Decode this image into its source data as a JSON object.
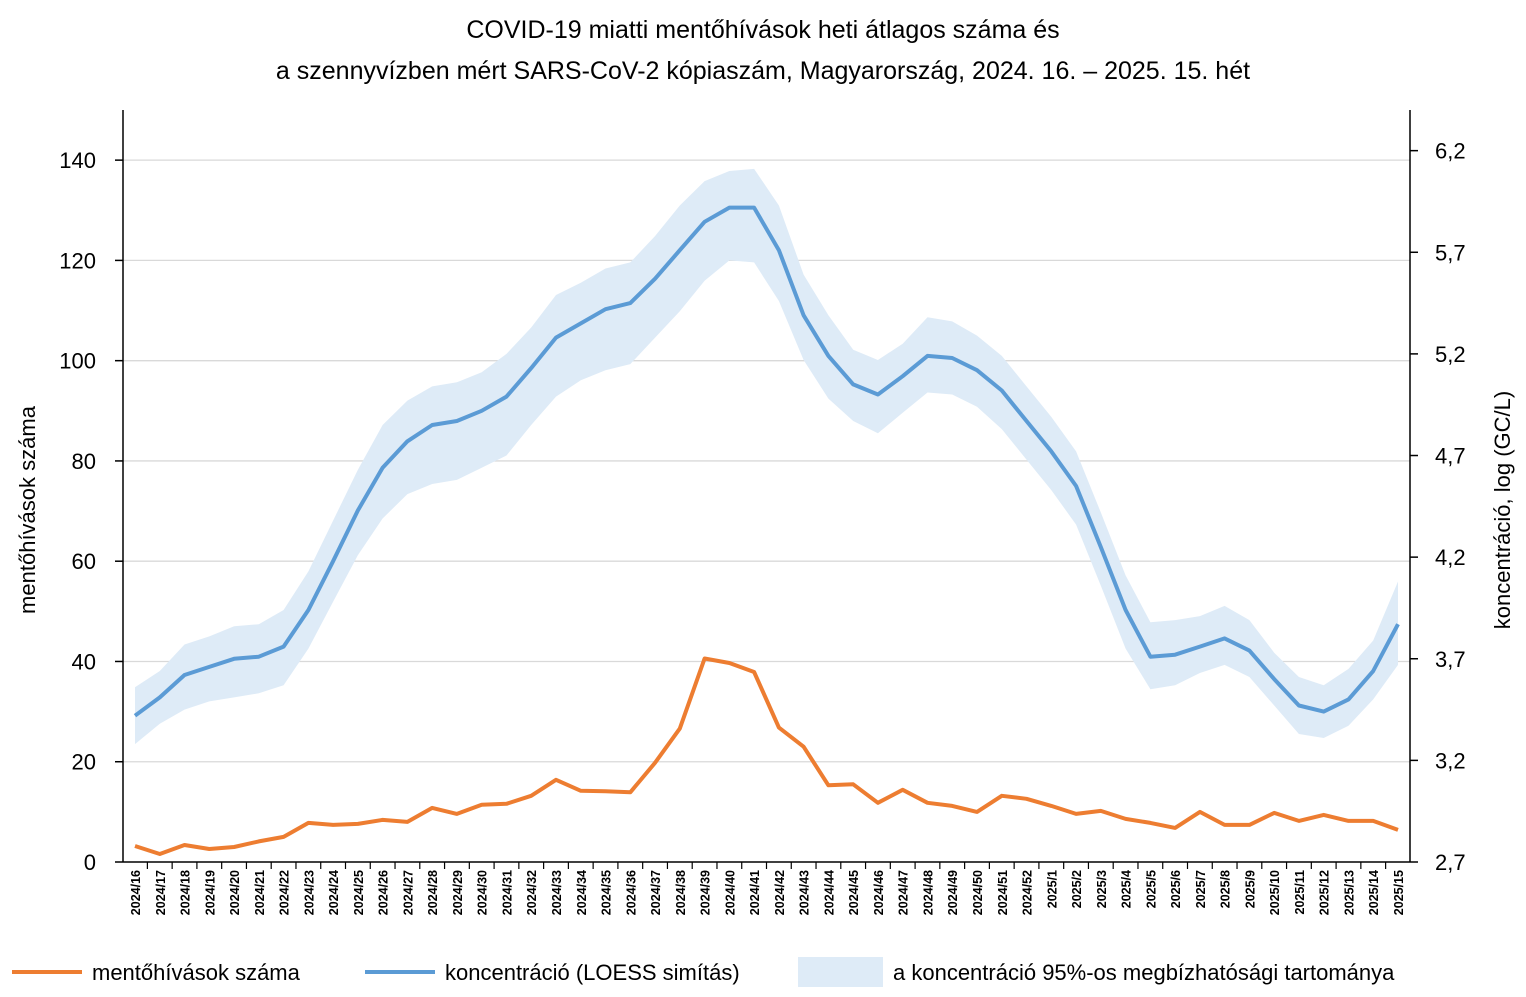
{
  "chart_data": {
    "type": "line",
    "title": "COVID-19 miatti mentőhívások heti átlagos száma és",
    "subtitle": "a szennyvízben mért SARS-CoV-2 kópiaszám, Magyarország, 2024. 16. – 2025. 15. hét",
    "ylabel": "mentőhívások száma",
    "y2label": "koncentráció, log (GC/L)",
    "ylim": [
      0,
      150
    ],
    "y2lim": [
      2.7,
      6.4
    ],
    "yticks": [
      "0",
      "20",
      "40",
      "60",
      "80",
      "100",
      "120",
      "140"
    ],
    "y2ticks": [
      "2,7",
      "3,2",
      "3,7",
      "4,2",
      "4,7",
      "5,2",
      "5,7",
      "6,2"
    ],
    "grid": true,
    "legend_position": "bottom",
    "categories": [
      "2024/16",
      "2024/17",
      "2024/18",
      "2024/19",
      "2024/20",
      "2024/21",
      "2024/22",
      "2024/23",
      "2024/24",
      "2024/25",
      "2024/26",
      "2024/27",
      "2024/28",
      "2024/29",
      "2024/30",
      "2024/31",
      "2024/32",
      "2024/33",
      "2024/34",
      "2024/35",
      "2024/36",
      "2024/37",
      "2024/38",
      "2024/39",
      "2024/40",
      "2024/41",
      "2024/42",
      "2024/43",
      "2024/44",
      "2024/45",
      "2024/46",
      "2024/47",
      "2024/48",
      "2024/49",
      "2024/50",
      "2024/51",
      "2024/52",
      "2025/1",
      "2025/2",
      "2025/3",
      "2025/4",
      "2025/5",
      "2025/6",
      "2025/7",
      "2025/8",
      "2025/9",
      "2025/10",
      "2025/11",
      "2025/12",
      "2025/13",
      "2025/14",
      "2025/15"
    ],
    "series": [
      {
        "name": "mentőhívások száma",
        "axis": "left",
        "color": "#ED7D31",
        "values": [
          3.2,
          1.6,
          3.4,
          2.6,
          3.0,
          4.1,
          5.0,
          7.8,
          7.4,
          7.6,
          8.4,
          8.0,
          10.8,
          9.6,
          11.4,
          11.6,
          13.2,
          16.4,
          14.2,
          14.1,
          13.9,
          19.8,
          26.6,
          40.6,
          39.7,
          37.9,
          26.8,
          23.0,
          15.3,
          15.5,
          11.8,
          14.4,
          11.8,
          11.2,
          10.0,
          13.2,
          12.6,
          11.2,
          9.6,
          10.2,
          8.6,
          7.8,
          6.8,
          10.0,
          7.4,
          7.4,
          9.8,
          8.2,
          9.4,
          8.2,
          8.2,
          6.4
        ]
      },
      {
        "name": "koncentráció (LOESS simítás)",
        "axis": "right",
        "color": "#5B9BD5",
        "values": [
          3.42,
          3.51,
          3.62,
          3.66,
          3.7,
          3.71,
          3.76,
          3.94,
          4.18,
          4.43,
          4.64,
          4.77,
          4.85,
          4.87,
          4.92,
          4.99,
          5.13,
          5.28,
          5.35,
          5.42,
          5.45,
          5.57,
          5.71,
          5.85,
          5.92,
          5.92,
          5.71,
          5.39,
          5.19,
          5.05,
          5.0,
          5.09,
          5.19,
          5.18,
          5.12,
          5.02,
          4.87,
          4.72,
          4.55,
          4.25,
          3.94,
          3.71,
          3.72,
          3.76,
          3.8,
          3.74,
          3.6,
          3.47,
          3.44,
          3.5,
          3.64,
          3.87
        ]
      },
      {
        "name": "a koncentráció 95%-os megbízhatósági tartománya",
        "axis": "right",
        "color": "#DEEBF7",
        "lower": [
          3.28,
          3.38,
          3.45,
          3.49,
          3.51,
          3.53,
          3.57,
          3.75,
          3.98,
          4.21,
          4.39,
          4.51,
          4.56,
          4.58,
          4.64,
          4.7,
          4.85,
          4.99,
          5.07,
          5.12,
          5.15,
          5.28,
          5.41,
          5.56,
          5.66,
          5.65,
          5.46,
          5.17,
          4.98,
          4.87,
          4.81,
          4.91,
          5.01,
          5.0,
          4.94,
          4.83,
          4.68,
          4.53,
          4.36,
          4.06,
          3.75,
          3.55,
          3.57,
          3.63,
          3.67,
          3.61,
          3.47,
          3.33,
          3.31,
          3.37,
          3.5,
          3.67
        ],
        "upper": [
          3.56,
          3.64,
          3.77,
          3.81,
          3.86,
          3.87,
          3.94,
          4.13,
          4.38,
          4.63,
          4.85,
          4.97,
          5.04,
          5.06,
          5.11,
          5.2,
          5.33,
          5.49,
          5.55,
          5.62,
          5.65,
          5.78,
          5.93,
          6.05,
          6.1,
          6.11,
          5.93,
          5.59,
          5.39,
          5.22,
          5.17,
          5.25,
          5.38,
          5.36,
          5.29,
          5.19,
          5.04,
          4.89,
          4.72,
          4.42,
          4.11,
          3.88,
          3.89,
          3.91,
          3.96,
          3.89,
          3.73,
          3.61,
          3.57,
          3.65,
          3.79,
          4.08
        ]
      }
    ]
  }
}
